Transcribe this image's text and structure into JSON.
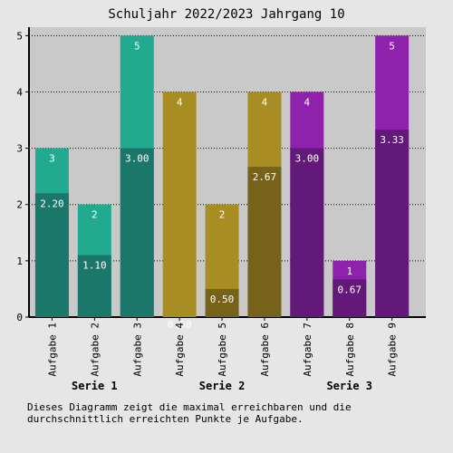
{
  "chart_data": {
    "type": "bar",
    "title": "Schuljahr 2022/2023 Jahrgang 10",
    "categories": [
      "Aufgabe 1",
      "Aufgabe 2",
      "Aufgabe 3",
      "Aufgabe 4",
      "Aufgabe 5",
      "Aufgabe 6",
      "Aufgabe 7",
      "Aufgabe 8",
      "Aufgabe 9"
    ],
    "groups": [
      {
        "name": "Serie 1",
        "categories": [
          "Aufgabe 1",
          "Aufgabe 2",
          "Aufgabe 3"
        ]
      },
      {
        "name": "Serie 2",
        "categories": [
          "Aufgabe 4",
          "Aufgabe 5",
          "Aufgabe 6"
        ]
      },
      {
        "name": "Serie 3",
        "categories": [
          "Aufgabe 7",
          "Aufgabe 8",
          "Aufgabe 9"
        ]
      }
    ],
    "series": [
      {
        "values": [
          3,
          2,
          5,
          4,
          2,
          4,
          4,
          1,
          5
        ],
        "labels": [
          "3",
          "2",
          "5",
          "4",
          "2",
          "4",
          "4",
          "1",
          "5"
        ]
      },
      {
        "values": [
          2.2,
          1.1,
          3.0,
          0.0,
          0.5,
          2.67,
          3.0,
          0.67,
          3.33
        ],
        "labels": [
          "2.20",
          "1.10",
          "3.00",
          "0.00",
          "0.50",
          "2.67",
          "3.00",
          "0.67",
          "3.33"
        ]
      }
    ],
    "ylim": [
      0,
      5.15
    ],
    "yticks": [
      0,
      1,
      2,
      3,
      4,
      5
    ],
    "grid": true,
    "colors": {
      "max": [
        "#22aa90",
        "#a88d22",
        "#8e22ad"
      ],
      "avg": [
        "#1a776a",
        "#77621a",
        "#63197a"
      ],
      "plot_bg": "#c9c9c9",
      "page_bg": "#e6e6e6"
    },
    "caption": "Dieses Diagramm zeigt die maximal erreichbaren und die durchschnittlich erreichten Punkte je Aufgabe."
  }
}
